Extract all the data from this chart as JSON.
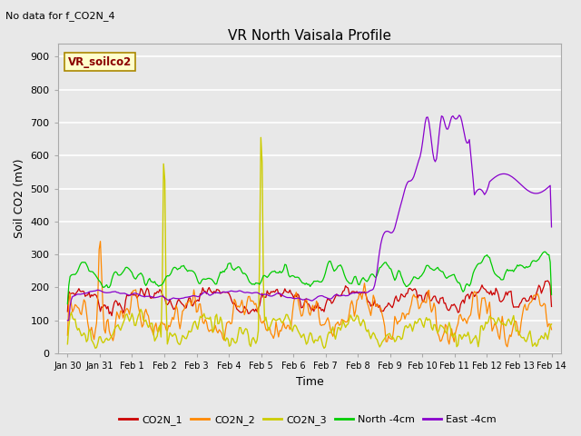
{
  "title": "VR North Vaisala Profile",
  "subtitle": "No data for f_CO2N_4",
  "xlabel": "Time",
  "ylabel": "Soil CO2 (mV)",
  "ylim": [
    0,
    940
  ],
  "yticks": [
    0,
    100,
    200,
    300,
    400,
    500,
    600,
    700,
    800,
    900
  ],
  "xtick_labels": [
    "Jan 30",
    "Jan 31",
    "Feb 1",
    "Feb 2",
    "Feb 3",
    "Feb 4",
    "Feb 5",
    "Feb 6",
    "Feb 7",
    "Feb 8",
    "Feb 9",
    "Feb 10",
    "Feb 11",
    "Feb 12",
    "Feb 13",
    "Feb 14"
  ],
  "watermark_text": "VR_soilco2",
  "colors": {
    "CO2N_1": "#cc0000",
    "CO2N_2": "#ff8800",
    "CO2N_3": "#cccc00",
    "North_4cm": "#00cc00",
    "East_4cm": "#8800cc"
  },
  "legend_labels": [
    "CO2N_1",
    "CO2N_2",
    "CO2N_3",
    "North -4cm",
    "East -4cm"
  ],
  "bg_color": "#e8e8e8",
  "grid_color": "#ffffff"
}
